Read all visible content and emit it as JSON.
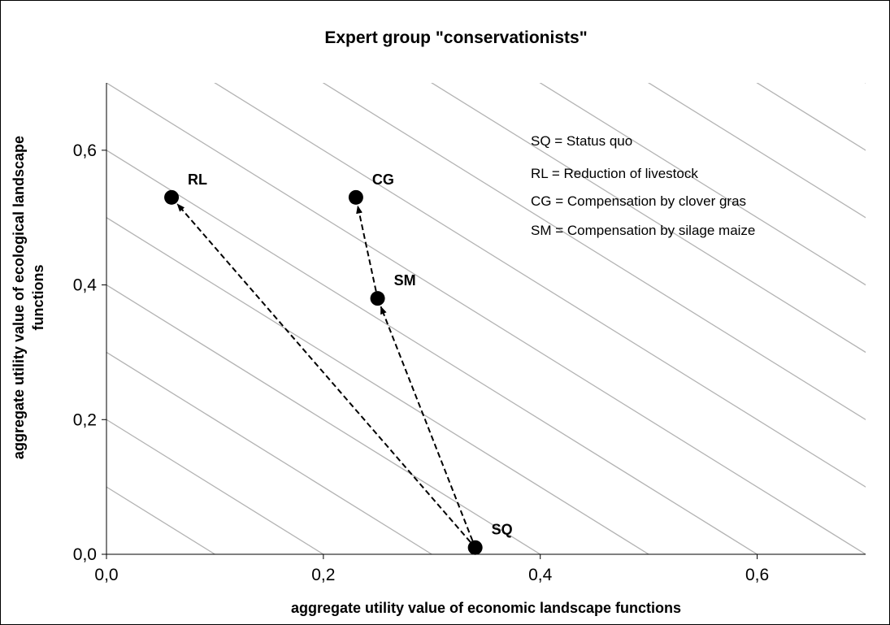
{
  "chart_data": {
    "type": "scatter",
    "title": "Expert group \"conservationists\"",
    "xlabel": "aggregate utility value of economic landscape functions",
    "ylabel": "aggregate utility value of ecological landscape functions",
    "xlim": [
      0,
      0.7
    ],
    "ylim": [
      0,
      0.7
    ],
    "x_ticks": [
      "0,0",
      "0,2",
      "0,4",
      "0,6"
    ],
    "y_ticks": [
      "0,0",
      "0,2",
      "0,4",
      "0,6"
    ],
    "tick_values": [
      0,
      0.2,
      0.4,
      0.6
    ],
    "grid": false,
    "iso_lines": {
      "slope": -1,
      "spacing": 0.1,
      "color": "#b3b3b3"
    },
    "points": [
      {
        "label": "SQ",
        "x": 0.34,
        "y": 0.01
      },
      {
        "label": "RL",
        "x": 0.06,
        "y": 0.53
      },
      {
        "label": "CG",
        "x": 0.23,
        "y": 0.53
      },
      {
        "label": "SM",
        "x": 0.25,
        "y": 0.38
      }
    ],
    "arrows": [
      {
        "from": "SQ",
        "to": "RL"
      },
      {
        "from": "SQ",
        "to": "SM"
      },
      {
        "from": "SM",
        "to": "CG"
      }
    ],
    "legend_position": "top-right",
    "legend": [
      "SQ = Status quo",
      "RL = Reduction of livestock",
      "CG = Compensation by clover gras",
      "SM = Compensation by silage maize"
    ]
  }
}
